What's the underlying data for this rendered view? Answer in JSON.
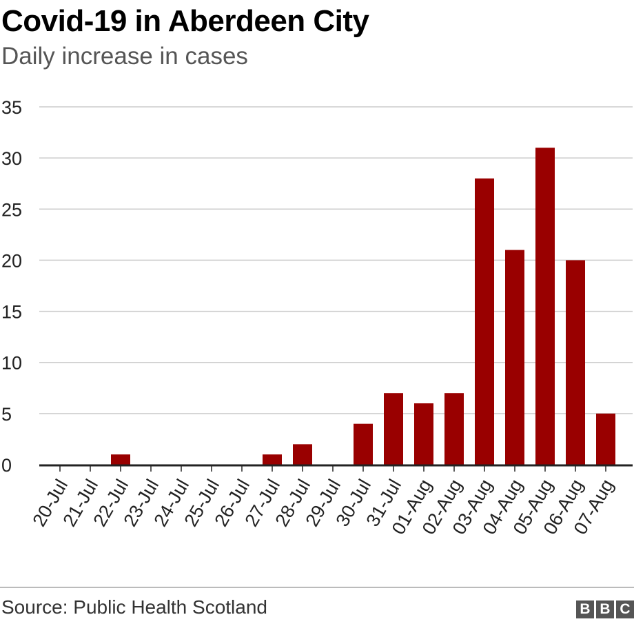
{
  "header": {
    "title": "Covid-19 in Aberdeen City",
    "subtitle": "Daily increase in cases"
  },
  "footer": {
    "source": "Source: Public Health Scotland",
    "logo_letters": [
      "B",
      "B",
      "C"
    ]
  },
  "colors": {
    "bar": "#990000",
    "grid": "#cccccc",
    "axis": "#222222"
  },
  "chart_data": {
    "type": "bar",
    "title": "Covid-19 in Aberdeen City",
    "subtitle": "Daily increase in cases",
    "categories": [
      "20-Jul",
      "21-Jul",
      "22-Jul",
      "23-Jul",
      "24-Jul",
      "25-Jul",
      "26-Jul",
      "27-Jul",
      "28-Jul",
      "29-Jul",
      "30-Jul",
      "31-Jul",
      "01-Aug",
      "02-Aug",
      "03-Aug",
      "04-Aug",
      "05-Aug",
      "06-Aug",
      "07-Aug"
    ],
    "values": [
      0,
      0,
      1,
      0,
      0,
      0,
      0,
      1,
      2,
      0,
      4,
      7,
      6,
      7,
      28,
      21,
      31,
      20,
      5
    ],
    "ylim": [
      0,
      35
    ],
    "yticks": [
      0,
      5,
      10,
      15,
      20,
      25,
      30,
      35
    ],
    "grid": true,
    "legend": "none"
  }
}
